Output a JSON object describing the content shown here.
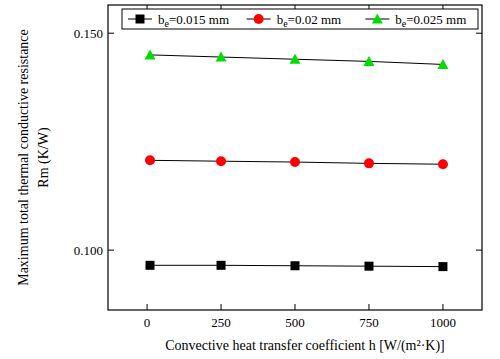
{
  "chart_data": {
    "type": "line",
    "x_label": "Convective heat transfer coefficient h [W/(m²·K)]",
    "y_label": [
      "Maximum total thermal conductive resistance",
      "Rm (K/W)"
    ],
    "x": [
      10,
      250,
      500,
      750,
      1000
    ],
    "series": [
      {
        "name": "be=0.015 mm",
        "color": "#000000",
        "marker": "square",
        "values": [
          0.0965,
          0.0965,
          0.0964,
          0.0963,
          0.0962
        ]
      },
      {
        "name": "be=0.02 mm",
        "color": "#ff0000",
        "marker": "circle",
        "values": [
          0.1207,
          0.1205,
          0.1203,
          0.12,
          0.1198
        ]
      },
      {
        "name": "be=0.025 mm",
        "color": "#00dd00",
        "marker": "triangle",
        "values": [
          0.145,
          0.1445,
          0.144,
          0.1435,
          0.1428
        ]
      }
    ],
    "xlim": [
      -132,
      1132
    ],
    "ylim": [
      0.0862,
      0.1565
    ],
    "xticks": [
      0,
      250,
      500,
      750,
      1000
    ],
    "yticks": [
      {
        "value": 0.1,
        "label": "0.100"
      },
      {
        "value": 0.15,
        "label": "0.150"
      }
    ],
    "legend": "top",
    "grid": false
  }
}
